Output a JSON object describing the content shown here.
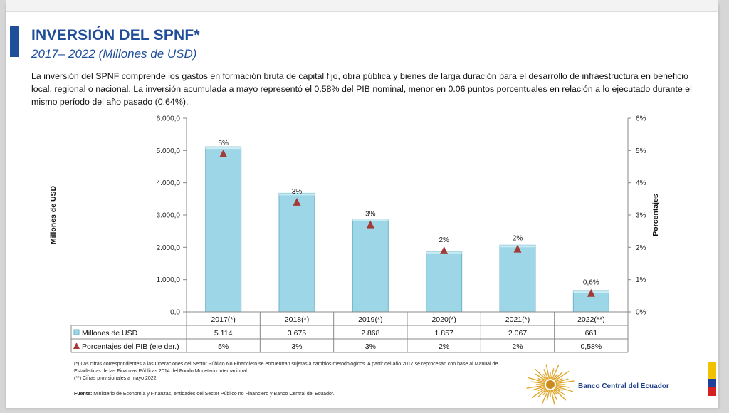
{
  "header": {
    "title": "INVERSIÓN DEL SPNF*",
    "subtitle": "2017– 2022 (Millones de USD)",
    "description": "La inversión del SPNF comprende los gastos en formación bruta de capital fijo, obra pública y bienes de larga duración para el desarrollo de infraestructura en beneficio local, regional o nacional. La inversión acumulada a mayo representó el 0.58% del PIB nominal, menor en 0.06 puntos porcentuales en relación a lo ejecutado durante el mismo período del año pasado (0.64%)."
  },
  "chart_data": {
    "type": "bar",
    "categories": [
      "2017(*)",
      "2018(*)",
      "2019(*)",
      "2020(*)",
      "2021(*)",
      "2022(**)"
    ],
    "series": [
      {
        "name": "Millones de USD",
        "values": [
          5114,
          3675,
          2868,
          1857,
          2067,
          661
        ],
        "table_labels": [
          "5.114",
          "3.675",
          "2.868",
          "1.857",
          "2.067",
          "661"
        ],
        "color": "#9dd6e6",
        "axis": "left"
      },
      {
        "name": "Porcentajes del PIB (eje der.)",
        "values": [
          4.9,
          3.4,
          2.7,
          1.9,
          1.95,
          0.58
        ],
        "data_labels": [
          "5%",
          "3%",
          "3%",
          "2%",
          "2%",
          "0,6%"
        ],
        "table_labels": [
          "5%",
          "3%",
          "3%",
          "2%",
          "2%",
          "0,58%"
        ],
        "color": "#a33a36",
        "marker": "triangle",
        "axis": "right"
      }
    ],
    "ylabel": "Millones de USD",
    "y2label": "Porcentajes",
    "ylim": [
      0,
      6000
    ],
    "y2lim": [
      0,
      6
    ],
    "yticks": [
      "0,0",
      "1.000,0",
      "2.000,0",
      "3.000,0",
      "4.000,0",
      "5.000,0",
      "6.000,0"
    ],
    "y2ticks": [
      "0%",
      "1%",
      "2%",
      "3%",
      "4%",
      "5%",
      "6%"
    ],
    "grid": false,
    "legend": "data-table-below"
  },
  "footer": {
    "note1": "(*) Las cifras correspondientes a las Operaciones del Sector Público No Financiero se encuentran sujetas a cambios metodológicos.  A partir del año 2017 se reprocesan con base al Manual de Estadísticas de las Finanzas Públicas 2014 del Fondo Monetario Internacional",
    "note2": "(**) Cifras provisionales a mayo 2022",
    "source_label": "Fuente:",
    "source_text": " Ministerio de Economía y Finanzas, entidades del Sector Público no Financiero y Banco Central del Ecuador.",
    "bank_name": "Banco Central del Ecuador"
  },
  "colors": {
    "brand_blue": "#1f4e9a",
    "bar": "#9dd6e6",
    "marker": "#a33a36",
    "flag_yellow": "#f2c200",
    "flag_blue": "#1f3f9a",
    "flag_red": "#d42020"
  }
}
